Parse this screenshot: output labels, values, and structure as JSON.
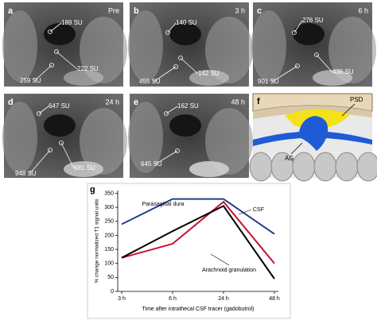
{
  "panels": [
    {
      "letter": "a",
      "time": "Pre",
      "labels": [
        "189 SU",
        "222 SU",
        "259 SU"
      ]
    },
    {
      "letter": "b",
      "time": "3 h",
      "labels": [
        "140 SU",
        "142 SU",
        "455 SU"
      ]
    },
    {
      "letter": "c",
      "time": "6 h",
      "labels": [
        "276 SU",
        "436 SU",
        "901 SU"
      ]
    },
    {
      "letter": "d",
      "time": "24 h",
      "labels": [
        "647 SU",
        "681 SU",
        "948 SU"
      ]
    },
    {
      "letter": "e",
      "time": "48 h",
      "labels": [
        "162 SU",
        "645 SU"
      ]
    },
    {
      "letter": "f",
      "labels": [
        "PSD",
        "AG"
      ]
    }
  ],
  "chart_data": {
    "type": "line",
    "panel": "g",
    "xlabel": "Time after intrathecal CSF tracer (gadobutrol)",
    "ylabel": "% change normalized T1 signal units",
    "categories": [
      "3 h",
      "6 h",
      "24 h",
      "48 h"
    ],
    "series": [
      {
        "name": "Parasagittal dura",
        "color": "#1f3f8f",
        "values": [
          240,
          330,
          330,
          205
        ]
      },
      {
        "name": "CSF",
        "color": "#c8102e",
        "values": [
          120,
          170,
          320,
          100
        ]
      },
      {
        "name": "Arachnoid granulation",
        "color": "#000000",
        "values": [
          120,
          215,
          305,
          45
        ]
      }
    ],
    "ylim": [
      0,
      360
    ],
    "yticks": [
      0,
      50,
      100,
      150,
      200,
      250,
      300,
      350
    ]
  }
}
